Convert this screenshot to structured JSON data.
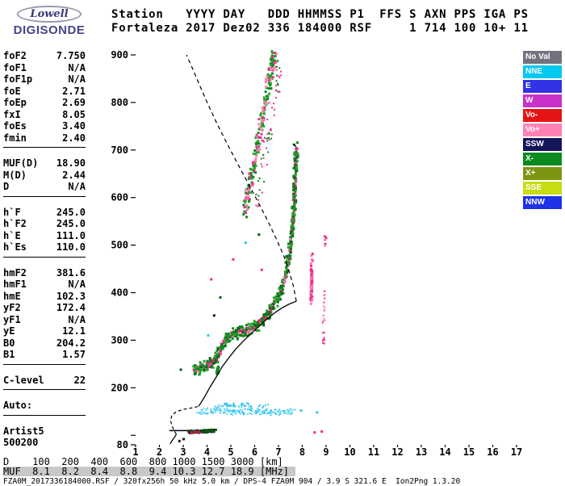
{
  "logo": {
    "line1": "Lowell",
    "line2": "DIGISONDE"
  },
  "header": {
    "line1": "Station   YYYY DAY   DDD HHMMSS P1  FFS S AXN PPS IGA PS",
    "line2": "Fortaleza 2017 Dez02 336 184000 RSF     1 714 100 10+ 11"
  },
  "params": {
    "groups": [
      {
        "rule": true,
        "rows": [
          [
            "foF2",
            "7.750"
          ],
          [
            "foF1",
            "N/A"
          ],
          [
            "foF1p",
            "N/A"
          ],
          [
            "foE",
            "2.71"
          ],
          [
            "foEp",
            "2.69"
          ],
          [
            "fxI",
            "8.05"
          ],
          [
            "foEs",
            "3.40"
          ],
          [
            "fmin",
            "2.40"
          ]
        ]
      },
      {
        "rule": true,
        "rows": [
          [
            "MUF(D)",
            "18.90"
          ],
          [
            "M(D)",
            "2.44"
          ],
          [
            "D",
            "N/A"
          ]
        ]
      },
      {
        "rule": true,
        "rows": [
          [
            "h`F",
            "245.0"
          ],
          [
            "h`F2",
            "245.0"
          ],
          [
            "h`E",
            "111.0"
          ],
          [
            "h`Es",
            "110.0"
          ]
        ]
      },
      {
        "rule": true,
        "rows": [
          [
            "hmF2",
            "381.6"
          ],
          [
            "hmF1",
            "N/A"
          ],
          [
            "hmE",
            "102.3"
          ],
          [
            "yF2",
            "172.4"
          ],
          [
            "yF1",
            "N/A"
          ],
          [
            "yE",
            "12.1"
          ],
          [
            "B0",
            "204.2"
          ],
          [
            "B1",
            "1.57"
          ]
        ]
      },
      {
        "rule": true,
        "rows": [
          [
            "C-level",
            "22"
          ]
        ]
      },
      {
        "rule": true,
        "rows": [
          [
            "Auto:",
            ""
          ]
        ]
      },
      {
        "rule": false,
        "rows": [
          [
            "Artist5",
            ""
          ],
          [
            "500200",
            ""
          ]
        ]
      }
    ]
  },
  "legend": [
    {
      "label": "No Val",
      "color": "#73737f"
    },
    {
      "label": "NNE",
      "color": "#00c8f0"
    },
    {
      "label": "E",
      "color": "#3232e6"
    },
    {
      "label": "W",
      "color": "#c832c8"
    },
    {
      "label": "Vo-",
      "color": "#e61414"
    },
    {
      "label": "Vo+",
      "color": "#ff82b4"
    },
    {
      "label": "SSW",
      "color": "#14145a"
    },
    {
      "label": "X-",
      "color": "#0c8a1f"
    },
    {
      "label": "X+",
      "color": "#7c9614"
    },
    {
      "label": "SSE",
      "color": "#c8dc14"
    },
    {
      "label": "NNW",
      "color": "#1e32e6"
    }
  ],
  "bottom": {
    "d_row": "D    100  200  400  600  800 1000 1500 3000 [km]",
    "muf_row": "MUF  8.1  8.2  8.4  8.8  9.4 10.3 12.7 18.9 [MHz]",
    "footer": "FZA0M_2017336184000.RSF / 320fx256h 50 kHz 5.0 km / DPS-4 FZA0M 904 / 3.9 S 321.6 E  Ion2Png 1.3.20"
  },
  "chart_data": {
    "type": "scatter",
    "title": "Fortaleza ionogram 2017 day 336 18:40:00",
    "xlabel": "[MHz]",
    "ylabel": "[km]",
    "x_range": [
      1,
      17
    ],
    "y_range": [
      80,
      900
    ],
    "x_ticks": [
      1,
      2,
      3,
      4,
      5,
      6,
      7,
      8,
      9,
      10,
      11,
      12,
      13,
      14,
      15,
      16,
      17
    ],
    "y_ticks": [
      {
        "v": 900,
        "label": "900"
      },
      {
        "v": 800,
        "label": "800"
      },
      {
        "v": 700,
        "label": "700"
      },
      {
        "v": 600,
        "label": "600"
      },
      {
        "v": 500,
        "label": "500"
      },
      {
        "v": 400,
        "label": "400"
      },
      {
        "v": 300,
        "label": "300"
      },
      {
        "v": 200,
        "label": "200"
      },
      {
        "v": 100,
        "label": ""
      },
      {
        "v": 80,
        "label": "80"
      }
    ],
    "paths": {
      "f-trace": [
        [
          3.45,
          238
        ],
        [
          3.7,
          241
        ],
        [
          4.0,
          246
        ],
        [
          4.3,
          255
        ],
        [
          4.5,
          272
        ],
        [
          4.7,
          296
        ],
        [
          4.95,
          309
        ],
        [
          5.2,
          315
        ],
        [
          5.5,
          319
        ],
        [
          5.8,
          324
        ],
        [
          6.1,
          332
        ],
        [
          6.4,
          346
        ],
        [
          6.7,
          364
        ],
        [
          6.95,
          387
        ],
        [
          7.15,
          411
        ],
        [
          7.3,
          437
        ],
        [
          7.42,
          467
        ],
        [
          7.52,
          503
        ],
        [
          7.6,
          543
        ],
        [
          7.66,
          588
        ],
        [
          7.7,
          633
        ],
        [
          7.73,
          673
        ],
        [
          7.75,
          706
        ]
      ],
      "second-hop": [
        [
          5.55,
          560
        ],
        [
          5.75,
          615
        ],
        [
          5.95,
          665
        ],
        [
          6.15,
          715
        ],
        [
          6.35,
          770
        ],
        [
          6.55,
          825
        ],
        [
          6.72,
          875
        ],
        [
          6.8,
          900
        ]
      ],
      "second-hop-2": [
        [
          6.05,
          585
        ],
        [
          6.3,
          650
        ],
        [
          6.55,
          715
        ],
        [
          6.8,
          785
        ],
        [
          7.0,
          850
        ],
        [
          7.1,
          895
        ]
      ],
      "col84": [
        [
          8.38,
          382
        ],
        [
          8.4,
          478
        ]
      ],
      "col89": [
        [
          8.9,
          300
        ],
        [
          8.92,
          428
        ]
      ],
      "col89b": [
        [
          8.95,
          492
        ],
        [
          8.96,
          522
        ]
      ],
      "es-band": [
        [
          3.22,
          107
        ],
        [
          3.8,
          108
        ],
        [
          4.36,
          110
        ]
      ],
      "es-band-red": [
        [
          3.3,
          106
        ],
        [
          3.75,
          107
        ]
      ],
      "cyan-band": [
        [
          3.6,
          150
        ],
        [
          4.4,
          152
        ],
        [
          5.2,
          149
        ],
        [
          6.0,
          151
        ],
        [
          6.8,
          148
        ],
        [
          7.55,
          150
        ]
      ],
      "cyan-band-2": [
        [
          4.3,
          163
        ],
        [
          5.4,
          164
        ],
        [
          6.5,
          162
        ]
      ],
      "foot-green": [
        [
          4.42,
          226
        ],
        [
          4.46,
          242
        ]
      ]
    },
    "lines": [
      {
        "name": "f-trace-line",
        "path": "f-trace",
        "dash": null,
        "color": "#000000",
        "width": 1.2,
        "layer": 0
      },
      {
        "name": "es-trace-line",
        "points": [
          [
            2.42,
            110
          ],
          [
            3.38,
            110
          ]
        ],
        "dash": null,
        "color": "#000000",
        "width": 1.5,
        "layer": 0
      },
      {
        "name": "trace-top-hook",
        "points": [
          [
            7.75,
            706
          ],
          [
            7.6,
            713
          ]
        ],
        "dash": null,
        "color": "#000000",
        "width": 1.2,
        "layer": 1
      },
      {
        "name": "e-region-profile",
        "points": [
          [
            2.45,
            82
          ],
          [
            2.52,
            88
          ],
          [
            2.62,
            95
          ],
          [
            2.71,
            102
          ]
        ],
        "dash": null,
        "color": "#000000",
        "width": 1.3,
        "layer": 1
      },
      {
        "name": "valley-profile",
        "points": [
          [
            2.71,
            102
          ],
          [
            2.56,
            116
          ],
          [
            2.47,
            130
          ],
          [
            2.52,
            142
          ],
          [
            2.72,
            150
          ],
          [
            3.05,
            155
          ],
          [
            3.4,
            158
          ],
          [
            3.65,
            161
          ]
        ],
        "dash": "4,3",
        "color": "#000000",
        "width": 1.2,
        "layer": 1
      },
      {
        "name": "f-bottomside-profile",
        "points": [
          [
            3.65,
            161
          ],
          [
            3.9,
            181
          ],
          [
            4.12,
            201
          ],
          [
            4.38,
            222
          ],
          [
            4.62,
            243
          ],
          [
            4.9,
            262
          ],
          [
            5.2,
            281
          ],
          [
            5.52,
            298
          ],
          [
            5.85,
            314
          ],
          [
            6.2,
            330
          ],
          [
            6.55,
            346
          ],
          [
            6.88,
            359
          ],
          [
            7.18,
            369
          ],
          [
            7.45,
            376
          ],
          [
            7.65,
            380
          ],
          [
            7.75,
            382
          ]
        ],
        "dash": null,
        "color": "#000000",
        "width": 1.3,
        "layer": 1
      },
      {
        "name": "topside-profile",
        "points": [
          [
            7.75,
            382
          ],
          [
            7.62,
            415
          ],
          [
            7.45,
            445
          ],
          [
            7.22,
            478
          ],
          [
            6.92,
            512
          ],
          [
            6.58,
            548
          ],
          [
            6.2,
            585
          ],
          [
            5.78,
            625
          ],
          [
            5.35,
            665
          ],
          [
            4.9,
            708
          ],
          [
            4.45,
            752
          ],
          [
            4.05,
            795
          ],
          [
            3.7,
            835
          ],
          [
            3.42,
            868
          ],
          [
            3.2,
            893
          ],
          [
            3.14,
            900
          ]
        ],
        "dash": "5,4",
        "color": "#000000",
        "width": 1.2,
        "layer": 1
      }
    ],
    "clusters": [
      {
        "name": "f-trace-omode",
        "colors": [
          "#ec2f8e",
          "#d61d77",
          "#ff7ab4"
        ],
        "path": "f-trace",
        "count": 280,
        "jf": 0.05,
        "jh": 6,
        "size": 3,
        "seed": 11
      },
      {
        "name": "f-trace-xmode",
        "colors": [
          "#0c8a1f",
          "#0a6e16",
          "#2aa32f"
        ],
        "path": "f-trace",
        "count": 320,
        "jf": 0.08,
        "jh": 13,
        "size": 3,
        "seed": 22
      },
      {
        "name": "second-hop-green",
        "colors": [
          "#0c8a1f",
          "#2aa32f"
        ],
        "path": "second-hop",
        "count": 130,
        "jf": 0.1,
        "jh": 14,
        "size": 3,
        "seed": 33
      },
      {
        "name": "second-hop-pink",
        "colors": [
          "#ec2f8e",
          "#ff7ab4"
        ],
        "path": "second-hop",
        "count": 70,
        "jf": 0.13,
        "jh": 16,
        "size": 3,
        "seed": 44
      },
      {
        "name": "second-hop-outer",
        "colors": [
          "#ec2f8e",
          "#0c8a1f"
        ],
        "path": "second-hop-2",
        "count": 60,
        "jf": 0.15,
        "jh": 18,
        "size": 2,
        "seed": 55
      },
      {
        "name": "x-column-84",
        "colors": [
          "#ec2f8e",
          "#ff7ab4"
        ],
        "path": "col84",
        "count": 70,
        "jf": 0.035,
        "jh": 7,
        "size": 3,
        "seed": 66
      },
      {
        "name": "x-column-89",
        "colors": [
          "#ec2f8e",
          "#ff7ab4"
        ],
        "path": "col89",
        "count": 26,
        "jf": 0.05,
        "jh": 12,
        "size": 2,
        "seed": 77
      },
      {
        "name": "x-column-89b",
        "colors": [
          "#ec2f8e"
        ],
        "path": "col89b",
        "count": 8,
        "jf": 0.04,
        "jh": 8,
        "size": 2,
        "seed": 88
      },
      {
        "name": "es-echoes",
        "colors": [
          "#123c12",
          "#161616",
          "#0a5a14"
        ],
        "path": "es-band",
        "count": 110,
        "jf": 0.05,
        "jh": 2.5,
        "size": 3,
        "seed": 99
      },
      {
        "name": "es-echoes-red",
        "colors": [
          "#d61d77",
          "#c02020"
        ],
        "path": "es-band-red",
        "count": 16,
        "jf": 0.05,
        "jh": 2,
        "size": 2,
        "seed": 101
      },
      {
        "name": "spread-cyan",
        "colors": [
          "#38c6ee",
          "#63d6f8"
        ],
        "path": "cyan-band",
        "count": 170,
        "jf": 0.22,
        "jh": 6,
        "size": 2,
        "seed": 112
      },
      {
        "name": "spread-cyan-upper",
        "colors": [
          "#38c6ee"
        ],
        "path": "cyan-band-2",
        "count": 45,
        "jf": 0.25,
        "jh": 4,
        "size": 2,
        "seed": 123
      },
      {
        "name": "trace-foot-green",
        "colors": [
          "#0c8a1f"
        ],
        "path": "foot-green",
        "count": 16,
        "jf": 0.03,
        "jh": 6,
        "size": 3,
        "seed": 134
      }
    ],
    "specks": [
      [
        4.18,
        428,
        "#ec2f8e"
      ],
      [
        4.3,
        352,
        "#1a1a1a"
      ],
      [
        2.9,
        238,
        "#0a5a14"
      ],
      [
        5.62,
        505,
        "#38c6ee"
      ],
      [
        6.18,
        522,
        "#0a5a14"
      ],
      [
        8.62,
        148,
        "#38c6ee"
      ],
      [
        7.95,
        152,
        "#38c6ee"
      ],
      [
        8.82,
        108,
        "#ec2f8e"
      ],
      [
        8.52,
        106,
        "#ec2f8e"
      ],
      [
        3.02,
        92,
        "#161616"
      ],
      [
        2.84,
        88,
        "#161616"
      ],
      [
        6.3,
        448,
        "#ec2f8e"
      ],
      [
        4.56,
        390,
        "#0a5a14"
      ],
      [
        5.1,
        470,
        "#ec2f8e"
      ],
      [
        4.05,
        310,
        "#38c6ee"
      ],
      [
        9.0,
        515,
        "#ec2f8e"
      ]
    ]
  }
}
